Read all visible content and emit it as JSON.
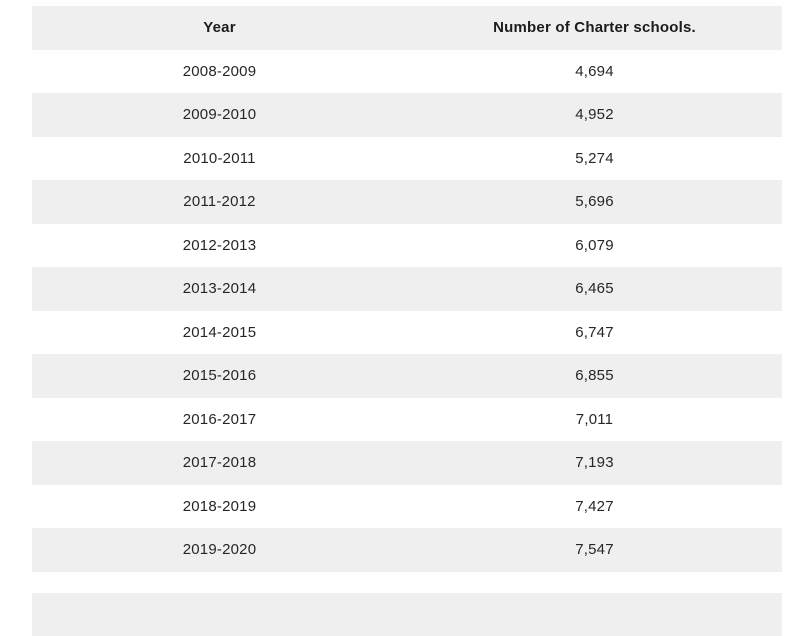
{
  "table": {
    "columns": [
      "Year",
      "Number of Charter schools."
    ],
    "rows": [
      [
        "2008-2009",
        "4,694"
      ],
      [
        "2009-2010",
        "4,952"
      ],
      [
        "2010-2011",
        "5,274"
      ],
      [
        "2011-2012",
        "5,696"
      ],
      [
        "2012-2013",
        "6,079"
      ],
      [
        "2013-2014",
        "6,465"
      ],
      [
        "2014-2015",
        "6,747"
      ],
      [
        "2015-2016",
        "6,855"
      ],
      [
        "2016-2017",
        "7,011"
      ],
      [
        "2017-2018",
        "7,193"
      ],
      [
        "2018-2019",
        "7,427"
      ],
      [
        "2019-2020",
        "7,547"
      ]
    ],
    "empty_trailing_rows": 2
  },
  "colors": {
    "stripe_background": "#efefef",
    "row_background": "#ffffff",
    "header_text": "#1c1c1c",
    "body_text": "#262626"
  },
  "chart_data": {
    "type": "table",
    "title": "",
    "columns": [
      "Year",
      "Number of Charter schools."
    ],
    "categories": [
      "2008-2009",
      "2009-2010",
      "2010-2011",
      "2011-2012",
      "2012-2013",
      "2013-2014",
      "2014-2015",
      "2015-2016",
      "2016-2017",
      "2017-2018",
      "2018-2019",
      "2019-2020"
    ],
    "values": [
      4694,
      4952,
      5274,
      5696,
      6079,
      6465,
      6747,
      6855,
      7011,
      7193,
      7427,
      7547
    ],
    "layout": "striped two-column table, centered text, alternating white/light-grey rows, grey header row"
  }
}
